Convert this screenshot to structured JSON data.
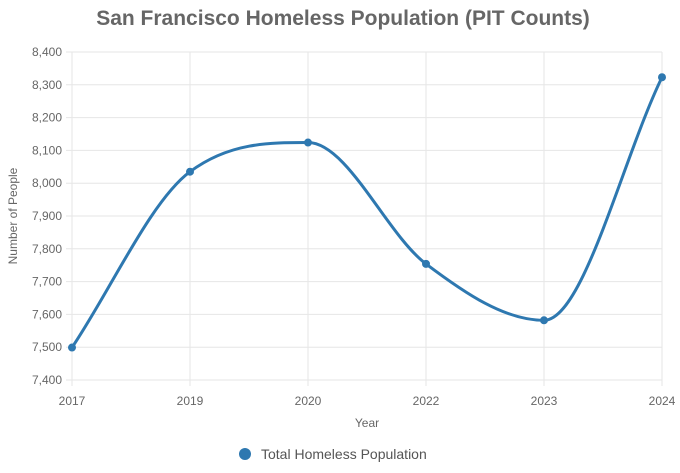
{
  "chart_data": {
    "type": "line",
    "title": "San Francisco Homeless Population (PIT Counts)",
    "xlabel": "Year",
    "ylabel": "Number of People",
    "categories": [
      "2017",
      "2019",
      "2020",
      "2022",
      "2023",
      "2024"
    ],
    "yticks": [
      "7,400",
      "7,500",
      "7,600",
      "7,700",
      "7,800",
      "7,900",
      "8,000",
      "8,100",
      "8,200",
      "8,300",
      "8,400"
    ],
    "ylim": [
      7400,
      8400
    ],
    "grid": true,
    "legend_position": "bottom",
    "series": [
      {
        "name": "Total Homeless Population",
        "color": "#2e78b0",
        "values": [
          7499,
          8035,
          8124,
          7754,
          7582,
          8323
        ]
      }
    ]
  }
}
